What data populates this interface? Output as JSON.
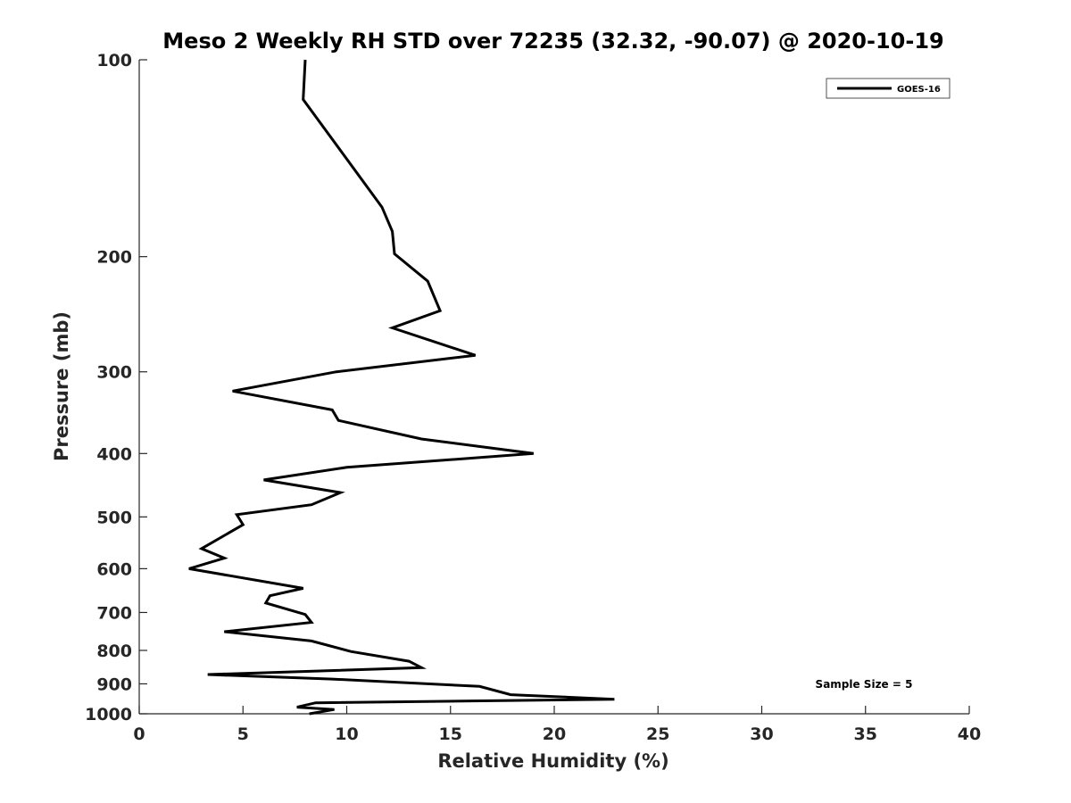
{
  "chart_data": {
    "type": "line",
    "title": "Meso 2 Weekly RH STD over 72235 (32.32, -90.07) @ 2020-10-19",
    "xlabel": "Relative Humidity (%)",
    "ylabel": "Pressure (mb)",
    "xlim": [
      0,
      40
    ],
    "ylim": [
      100,
      1000
    ],
    "yscale": "log",
    "y_reversed": true,
    "grid": false,
    "x_ticks": [
      0,
      5,
      10,
      15,
      20,
      25,
      30,
      35,
      40
    ],
    "y_ticks": [
      100,
      200,
      300,
      400,
      500,
      600,
      700,
      800,
      900,
      1000
    ],
    "legend": {
      "position": "top-right",
      "entries": [
        "GOES-16"
      ]
    },
    "annotation": "Sample Size = 5",
    "series": [
      {
        "name": "GOES-16",
        "color": "#000000",
        "x": [
          8.0,
          7.9,
          11.7,
          12.2,
          12.3,
          13.9,
          14.5,
          12.2,
          16.2,
          9.5,
          4.5,
          9.3,
          9.6,
          13.6,
          19.0,
          10.0,
          6.0,
          9.7,
          8.3,
          4.7,
          5.0,
          3.0,
          4.1,
          2.4,
          7.9,
          6.3,
          6.1,
          8.0,
          8.3,
          4.1,
          8.3,
          10.2,
          13.0,
          13.6,
          3.3,
          9.3,
          16.4,
          17.9,
          22.9,
          8.5,
          7.6,
          9.4,
          8.2
        ],
        "y": [
          100,
          115,
          168,
          183,
          198,
          218,
          242,
          257,
          283,
          300,
          321,
          343,
          356,
          380,
          400,
          420,
          439,
          459,
          479,
          496,
          514,
          559,
          578,
          600,
          643,
          660,
          677,
          705,
          725,
          749,
          774,
          803,
          831,
          850,
          871,
          885,
          908,
          935,
          950,
          962,
          977,
          985,
          1000
        ]
      }
    ]
  }
}
